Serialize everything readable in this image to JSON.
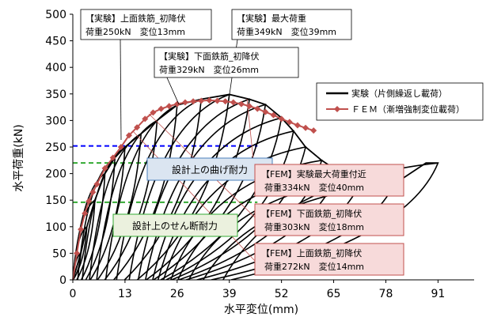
{
  "chart_data": {
    "type": "line",
    "xlabel": "水平変位(mm)",
    "ylabel": "水平荷重(kN)",
    "xlim": [
      0,
      100
    ],
    "ylim": [
      0,
      500
    ],
    "x_ticks": [
      "0",
      "13",
      "26",
      "39",
      "52",
      "65",
      "78",
      "91"
    ],
    "y_ticks": [
      "0",
      "50",
      "100",
      "150",
      "200",
      "250",
      "300",
      "350",
      "400",
      "450",
      "500"
    ],
    "grid": false,
    "legend_position": "top-right",
    "series": [
      {
        "name": "実験（片側繰返し載荷）",
        "style": "line",
        "color": "#000000",
        "envelope": [
          [
            0,
            0
          ],
          [
            2,
            50
          ],
          [
            3.5,
            100
          ],
          [
            5.5,
            150
          ],
          [
            8,
            200
          ],
          [
            10.5,
            230
          ],
          [
            13,
            250
          ],
          [
            17,
            275
          ],
          [
            21,
            300
          ],
          [
            26,
            329
          ],
          [
            32,
            340
          ],
          [
            39,
            349
          ],
          [
            44,
            340
          ],
          [
            48,
            330
          ],
          [
            52,
            305
          ],
          [
            55,
            280
          ],
          [
            58,
            250
          ],
          [
            62,
            225
          ],
          [
            66,
            205
          ],
          [
            72,
            190
          ],
          [
            80,
            180
          ],
          [
            88,
            220
          ],
          [
            91,
            220
          ]
        ],
        "cycle_peaks": [
          [
            2,
            50
          ],
          [
            3.5,
            100
          ],
          [
            5.5,
            150
          ],
          [
            8,
            200
          ],
          [
            10.5,
            230
          ],
          [
            13,
            250
          ],
          [
            17,
            275
          ],
          [
            21,
            300
          ],
          [
            26,
            329
          ],
          [
            32,
            340
          ],
          [
            39,
            349
          ],
          [
            44,
            340
          ],
          [
            48,
            330
          ],
          [
            52,
            305
          ],
          [
            55,
            280
          ],
          [
            58,
            250
          ],
          [
            62,
            225
          ],
          [
            66,
            205
          ],
          [
            72,
            190
          ],
          [
            80,
            180
          ],
          [
            91,
            220
          ]
        ]
      },
      {
        "name": "ＦＥＭ（漸増強制変位載荷）",
        "style": "line-marker",
        "color": "#c0504d",
        "x": [
          0,
          1,
          2,
          3,
          4,
          5,
          6,
          8,
          10,
          12,
          14,
          16,
          18,
          20,
          22,
          24,
          26,
          28,
          30,
          32,
          34,
          36,
          38,
          40,
          42,
          44,
          46,
          48,
          50,
          52,
          54,
          56,
          58,
          60
        ],
        "y": [
          0,
          50,
          95,
          125,
          148,
          165,
          180,
          210,
          230,
          250,
          272,
          287,
          303,
          315,
          322,
          327,
          331,
          334,
          336,
          337,
          338,
          337,
          336,
          334,
          331,
          327,
          322,
          316,
          310,
          303,
          297,
          291,
          286,
          281
        ]
      }
    ],
    "reference_lines": [
      {
        "name": "設計上の曲げ耐力",
        "y": 252,
        "color": "#0000ff"
      },
      {
        "name": "設計上のせん断耐力",
        "y": 220,
        "color": "#33aa33"
      },
      {
        "name": "設計上のせん断耐力",
        "y": 146,
        "color": "#33aa33"
      }
    ],
    "annotations": {
      "exp_top_yield": {
        "l1": "【実験】上面鉄筋_初降伏",
        "l2": "荷重250kN　変位13mm",
        "x": 13,
        "y": 250
      },
      "exp_max": {
        "l1": "【実験】最大荷重",
        "l2": "荷重349kN　変位39mm",
        "x": 39,
        "y": 349
      },
      "exp_bottom_yield": {
        "l1": "【実験】下面鉄筋_初降伏",
        "l2": "荷重329kN　変位26mm",
        "x": 26,
        "y": 329
      },
      "design_bending": {
        "l1": "設計上の曲げ耐力"
      },
      "design_shear": {
        "l1": "設計上のせん断耐力"
      },
      "fem_near_max": {
        "l1": "【FEM】実験最大荷重付近",
        "l2": "荷重334kN　変位40mm",
        "x": 40,
        "y": 334
      },
      "fem_bottom_yield": {
        "l1": "【FEM】下面鉄筋_初降伏",
        "l2": "荷重303kN　変位18mm",
        "x": 18,
        "y": 303
      },
      "fem_top_yield": {
        "l1": "【FEM】上面鉄筋_初降伏",
        "l2": "荷重272kN　変位14mm",
        "x": 14,
        "y": 272
      }
    },
    "colors": {
      "experiment": "#000000",
      "fem": "#c0504d",
      "fem_box_bg": "#f7dada",
      "blue_box_bg": "#dbe5f1",
      "green_box_bg": "#ebf1de"
    }
  }
}
